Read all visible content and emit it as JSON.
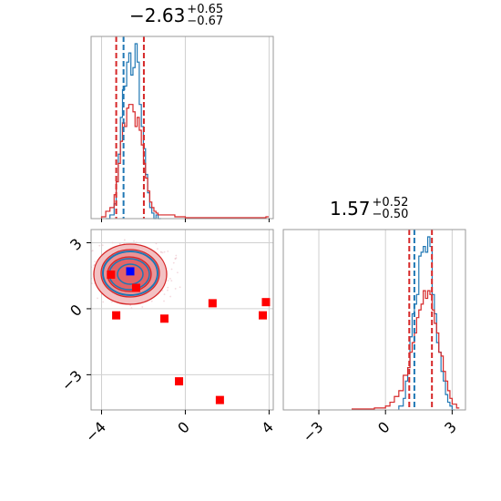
{
  "chart_data": [
    {
      "type": "histogram",
      "panel": "top-left",
      "parameter_index": 0,
      "title": {
        "value": "−2.63",
        "plus": "+0.65",
        "minus": "−0.67"
      },
      "xlim": [
        -4.5,
        4.2
      ],
      "quantiles": {
        "low": -3.3,
        "median": -2.63,
        "high": -1.98
      },
      "reference_line": -2.95,
      "series": [
        {
          "color": "#1f77b4",
          "x": [
            -3.8,
            -3.6,
            -3.4,
            -3.3,
            -3.2,
            -3.1,
            -3.0,
            -2.9,
            -2.8,
            -2.7,
            -2.6,
            -2.5,
            -2.4,
            -2.3,
            -2.2,
            -2.1,
            -2.0,
            -1.9,
            -1.8,
            -1.7,
            -1.6,
            -1.5,
            -1.4,
            -1.3
          ],
          "y": [
            0.0,
            0.02,
            0.08,
            0.2,
            0.35,
            0.55,
            0.7,
            0.72,
            0.85,
            0.9,
            0.78,
            0.82,
            0.95,
            0.85,
            0.62,
            0.5,
            0.38,
            0.24,
            0.14,
            0.06,
            0.03,
            0.0,
            0.02,
            0.0
          ]
        },
        {
          "color": "#d62728",
          "x": [
            -4.0,
            -3.8,
            -3.6,
            -3.4,
            -3.3,
            -3.2,
            -3.1,
            -3.0,
            -2.9,
            -2.8,
            -2.7,
            -2.6,
            -2.5,
            -2.4,
            -2.3,
            -2.2,
            -2.1,
            -2.0,
            -1.9,
            -1.8,
            -1.7,
            -1.6,
            -1.5,
            -1.4,
            -1.3,
            -0.5,
            0.0,
            2.0,
            3.85
          ],
          "y": [
            0.01,
            0.04,
            0.06,
            0.13,
            0.2,
            0.3,
            0.42,
            0.52,
            0.5,
            0.6,
            0.62,
            0.62,
            0.58,
            0.5,
            0.55,
            0.48,
            0.4,
            0.3,
            0.22,
            0.15,
            0.09,
            0.06,
            0.04,
            0.03,
            0.02,
            0.01,
            0.005,
            0.005,
            0.01
          ]
        }
      ]
    },
    {
      "type": "scatter",
      "panel": "bottom-left",
      "xlim": [
        -4.5,
        4.2
      ],
      "ylim": [
        -4.6,
        3.6
      ],
      "x_ticks": [
        "−4",
        "0",
        "4"
      ],
      "y_ticks": [
        "3",
        "0",
        "−3"
      ],
      "contour_center": [
        -2.63,
        1.57
      ],
      "markers": [
        {
          "x": -3.55,
          "y": 1.55,
          "color": "#ff0000"
        },
        {
          "x": -3.3,
          "y": -0.3,
          "color": "#ff0000"
        },
        {
          "x": -2.35,
          "y": 0.95,
          "color": "#ff0000"
        },
        {
          "x": -1.0,
          "y": -0.45,
          "color": "#ff0000"
        },
        {
          "x": -0.3,
          "y": -3.3,
          "color": "#ff0000"
        },
        {
          "x": 1.3,
          "y": 0.25,
          "color": "#ff0000"
        },
        {
          "x": 1.65,
          "y": -4.15,
          "color": "#ff0000"
        },
        {
          "x": 3.7,
          "y": -0.3,
          "color": "#ff0000"
        },
        {
          "x": 3.85,
          "y": 0.3,
          "color": "#ff0000"
        },
        {
          "x": -2.63,
          "y": 1.7,
          "color": "#0000ff"
        }
      ]
    },
    {
      "type": "histogram",
      "panel": "bottom-right",
      "parameter_index": 1,
      "title": {
        "value": "1.57",
        "plus": "+0.52",
        "minus": "−0.50"
      },
      "xlim": [
        -4.6,
        3.6
      ],
      "x_ticks": [
        "−3",
        "0",
        "3"
      ],
      "quantiles": {
        "low": 1.07,
        "median": 1.57,
        "high": 2.09
      },
      "reference_line": 1.3,
      "series": [
        {
          "color": "#1f77b4",
          "x": [
            0.6,
            0.8,
            0.9,
            1.0,
            1.1,
            1.2,
            1.3,
            1.4,
            1.5,
            1.6,
            1.7,
            1.8,
            1.9,
            2.0,
            2.1,
            2.2,
            2.3,
            2.4,
            2.5,
            2.6,
            2.7,
            2.8,
            2.9,
            3.0
          ],
          "y": [
            0.02,
            0.06,
            0.15,
            0.22,
            0.38,
            0.5,
            0.55,
            0.6,
            0.8,
            0.82,
            0.85,
            0.82,
            0.9,
            0.85,
            0.6,
            0.5,
            0.35,
            0.3,
            0.2,
            0.15,
            0.08,
            0.04,
            0.02,
            0.0
          ]
        },
        {
          "color": "#d62728",
          "x": [
            -1.5,
            -0.5,
            0.0,
            0.2,
            0.4,
            0.6,
            0.8,
            1.0,
            1.1,
            1.2,
            1.3,
            1.4,
            1.5,
            1.6,
            1.7,
            1.8,
            1.9,
            2.0,
            2.1,
            2.2,
            2.3,
            2.4,
            2.5,
            2.6,
            2.7,
            2.8,
            2.9,
            3.0,
            3.2
          ],
          "y": [
            0.005,
            0.01,
            0.02,
            0.04,
            0.07,
            0.1,
            0.18,
            0.22,
            0.3,
            0.35,
            0.4,
            0.48,
            0.52,
            0.55,
            0.62,
            0.58,
            0.62,
            0.6,
            0.52,
            0.45,
            0.4,
            0.3,
            0.28,
            0.2,
            0.15,
            0.1,
            0.06,
            0.03,
            0.01
          ]
        }
      ]
    }
  ]
}
